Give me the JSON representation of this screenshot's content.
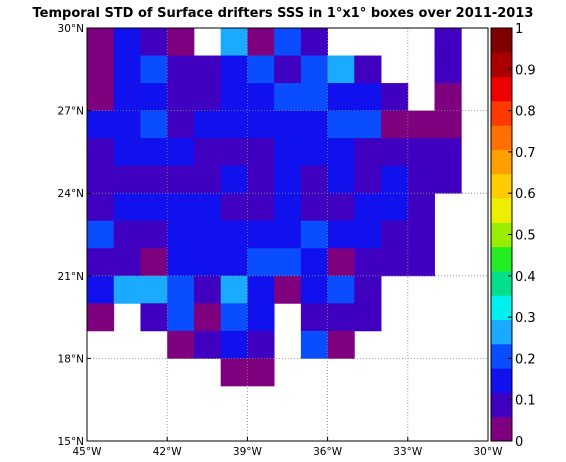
{
  "chart_data": {
    "type": "heatmap",
    "title": "Temporal STD of Surface drifters SSS in 1°x1° boxes over 2011-2013",
    "xlabel": "",
    "ylabel": "",
    "xlim": [
      -45,
      -30
    ],
    "ylim": [
      15,
      30
    ],
    "grid": true,
    "x_ticks": [
      {
        "value": -45,
        "label": "45°W"
      },
      {
        "value": -42,
        "label": "42°W"
      },
      {
        "value": -39,
        "label": "39°W"
      },
      {
        "value": -36,
        "label": "36°W"
      },
      {
        "value": -33,
        "label": "33°W"
      },
      {
        "value": -30,
        "label": "30°W"
      }
    ],
    "y_ticks": [
      {
        "value": 15,
        "label": "15°N"
      },
      {
        "value": 18,
        "label": "18°N"
      },
      {
        "value": 21,
        "label": "21°N"
      },
      {
        "value": 24,
        "label": "24°N"
      },
      {
        "value": 27,
        "label": "27°N"
      },
      {
        "value": 30,
        "label": "30°N"
      }
    ],
    "colorbar": {
      "min": 0,
      "max": 1,
      "ticks": [
        "0",
        "0.1",
        "0.2",
        "0.3",
        "0.4",
        "0.5",
        "0.6",
        "0.7",
        "0.8",
        "0.9",
        "1"
      ],
      "colors": [
        "#7f007f",
        "#3f00bf",
        "#1111ee",
        "#0a4dff",
        "#1aaaff",
        "#00f0f0",
        "#00e08a",
        "#22ee22",
        "#99ee00",
        "#eeee00",
        "#ffcc00",
        "#ffa000",
        "#ff7000",
        "#ff3a00",
        "#ee0000",
        "#aa0000",
        "#800000"
      ]
    },
    "lat_edges_top_down": [
      30,
      29,
      28,
      27,
      26,
      25,
      24,
      23,
      22,
      21,
      20,
      19,
      18,
      17,
      16
    ],
    "lon_start": -45,
    "cell_size_deg": 1,
    "rows": [
      [
        0.02,
        0.12,
        0.08,
        0.02,
        null,
        0.28,
        0.03,
        0.18,
        0.06,
        null,
        null,
        null,
        null,
        0.07,
        null
      ],
      [
        0.02,
        0.12,
        0.2,
        0.07,
        0.06,
        0.12,
        0.18,
        0.04,
        0.17,
        0.28,
        0.04,
        null,
        null,
        0.07,
        null
      ],
      [
        0.02,
        0.12,
        0.13,
        0.07,
        0.07,
        0.12,
        0.12,
        0.18,
        0.18,
        0.13,
        0.13,
        0.06,
        null,
        0.03,
        null
      ],
      [
        0.12,
        0.12,
        0.18,
        0.07,
        0.12,
        0.12,
        0.12,
        0.12,
        0.12,
        0.18,
        0.18,
        0.03,
        0.03,
        0.03,
        null
      ],
      [
        0.07,
        0.12,
        0.12,
        0.12,
        0.07,
        0.07,
        0.07,
        0.12,
        0.12,
        0.12,
        0.07,
        0.07,
        0.04,
        0.04,
        null
      ],
      [
        0.07,
        0.07,
        0.07,
        0.07,
        0.07,
        0.12,
        0.07,
        0.12,
        0.07,
        0.12,
        0.07,
        0.12,
        0.07,
        0.04,
        null
      ],
      [
        0.07,
        0.12,
        0.12,
        0.12,
        0.12,
        0.07,
        0.07,
        0.12,
        0.07,
        0.07,
        0.12,
        0.12,
        0.04,
        null,
        null
      ],
      [
        0.2,
        0.07,
        0.07,
        0.12,
        0.12,
        0.12,
        0.12,
        0.12,
        0.18,
        0.12,
        0.12,
        0.04,
        0.04,
        null,
        null
      ],
      [
        0.07,
        0.07,
        0.03,
        0.12,
        0.12,
        0.12,
        0.18,
        0.18,
        0.12,
        0.03,
        0.07,
        0.04,
        0.04,
        null,
        null
      ],
      [
        0.12,
        0.27,
        0.23,
        0.18,
        0.06,
        0.25,
        0.12,
        0.03,
        0.12,
        0.2,
        0.04,
        null,
        null,
        null,
        null
      ],
      [
        0.03,
        null,
        0.06,
        0.18,
        0.03,
        0.2,
        0.12,
        null,
        0.07,
        0.07,
        0.04,
        null,
        null,
        null,
        null
      ],
      [
        null,
        null,
        null,
        0.03,
        0.07,
        0.12,
        0.07,
        null,
        0.2,
        0.03,
        null,
        null,
        null,
        null,
        null
      ],
      [
        null,
        null,
        null,
        null,
        null,
        0.03,
        0.03,
        null,
        null,
        null,
        null,
        null,
        null,
        null,
        null
      ],
      [
        null,
        null,
        null,
        null,
        null,
        null,
        null,
        null,
        null,
        null,
        null,
        null,
        null,
        null,
        null
      ],
      [
        null,
        null,
        null,
        null,
        null,
        null,
        null,
        null,
        null,
        null,
        null,
        null,
        null,
        null,
        null
      ]
    ]
  }
}
